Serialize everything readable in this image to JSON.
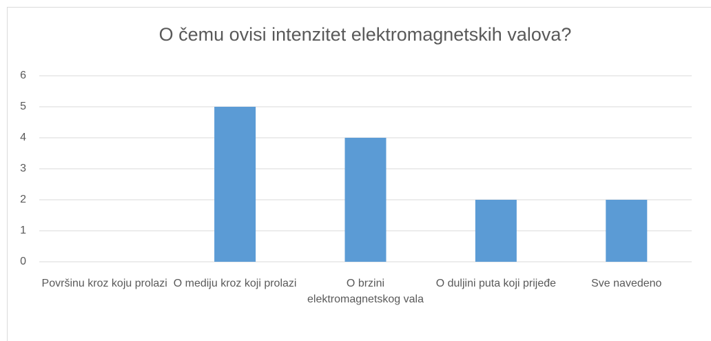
{
  "chart_data": {
    "type": "bar",
    "title": "O čemu ovisi intenzitet elektromagnetskih valova?",
    "categories": [
      "Površinu kroz koju prolazi",
      "O mediju kroz koji prolazi",
      "O brzini elektromagnetskog vala",
      "O duljini puta koji prijeđe",
      "Sve navedeno"
    ],
    "values": [
      0,
      5,
      4,
      2,
      2
    ],
    "color": "#5b9bd5",
    "ylim": [
      0,
      6
    ],
    "yticks": [
      0,
      1,
      2,
      3,
      4,
      5,
      6
    ],
    "grid": true
  }
}
